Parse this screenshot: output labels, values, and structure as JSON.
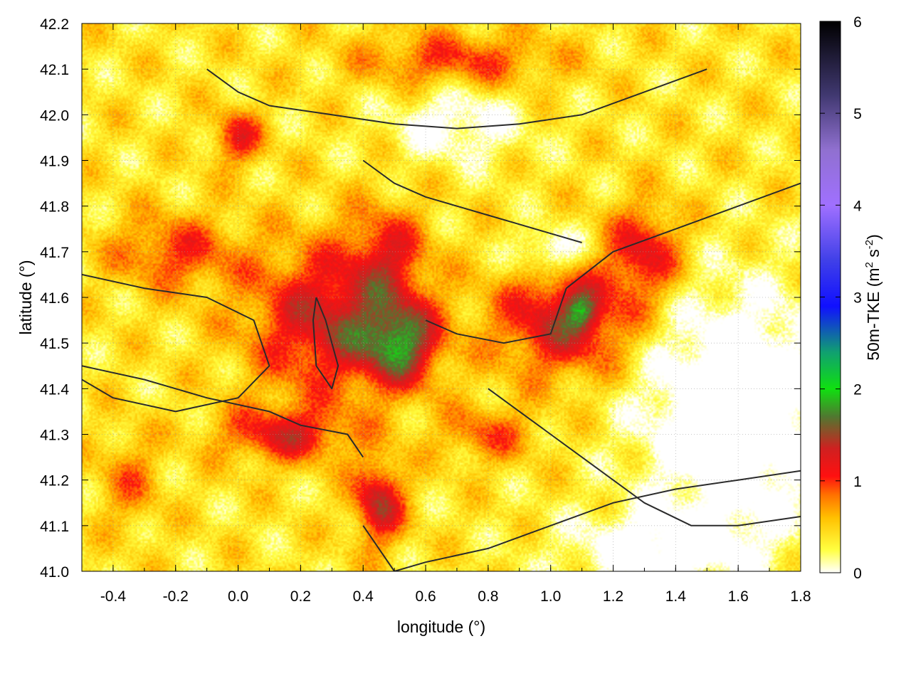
{
  "chart_data": {
    "type": "heatmap",
    "xlabel": "longitude (°)",
    "ylabel": "latitude (°)",
    "xlim": [
      -0.5,
      1.8
    ],
    "ylim": [
      41.0,
      42.2
    ],
    "x_ticks": [
      -0.4,
      -0.2,
      0.0,
      0.2,
      0.4,
      0.6,
      0.8,
      1.0,
      1.2,
      1.4,
      1.6,
      1.8
    ],
    "x_tick_labels": [
      "-0.4",
      "-0.2",
      "0.0",
      "0.2",
      "0.4",
      "0.6",
      "0.8",
      "1.0",
      "1.2",
      "1.4",
      "1.6",
      "1.8"
    ],
    "y_ticks": [
      41.0,
      41.1,
      41.2,
      41.3,
      41.4,
      41.5,
      41.6,
      41.7,
      41.8,
      41.9,
      42.0,
      42.1,
      42.2
    ],
    "y_tick_labels": [
      "41.0",
      "41.1",
      "41.2",
      "41.3",
      "41.4",
      "41.5",
      "41.6",
      "41.7",
      "41.8",
      "41.9",
      "42.0",
      "42.1",
      "42.2"
    ],
    "grid": true,
    "colorbar": {
      "label_main": "50m-TKE (m",
      "label_sup1": "2",
      "label_mid": " s",
      "label_sup2": "-2",
      "label_end": ")",
      "range": [
        0,
        6
      ],
      "ticks": [
        0,
        1,
        2,
        3,
        4,
        5,
        6
      ],
      "tick_labels": [
        "0",
        "1",
        "2",
        "3",
        "4",
        "5",
        "6"
      ],
      "colormap": [
        {
          "value": 0.0,
          "color": "#ffffff"
        },
        {
          "value": 0.25,
          "color": "#ffff40"
        },
        {
          "value": 0.6,
          "color": "#ffc000"
        },
        {
          "value": 0.85,
          "color": "#ff7000"
        },
        {
          "value": 1.05,
          "color": "#ff1010"
        },
        {
          "value": 1.35,
          "color": "#d02020"
        },
        {
          "value": 1.7,
          "color": "#507830"
        },
        {
          "value": 2.0,
          "color": "#10e010"
        },
        {
          "value": 2.4,
          "color": "#10a070"
        },
        {
          "value": 2.9,
          "color": "#1010ff"
        },
        {
          "value": 3.4,
          "color": "#4040e8"
        },
        {
          "value": 4.0,
          "color": "#a070ff"
        },
        {
          "value": 4.6,
          "color": "#9070d0"
        },
        {
          "value": 5.2,
          "color": "#403870"
        },
        {
          "value": 6.0,
          "color": "#000000"
        }
      ]
    },
    "field_blobs": [
      {
        "x": 0.3,
        "y": 41.55,
        "sx": 0.26,
        "sy": 0.16,
        "v": 1.0
      },
      {
        "x": 0.52,
        "y": 41.5,
        "sx": 0.12,
        "sy": 0.09,
        "v": 1.1
      },
      {
        "x": 0.48,
        "y": 41.7,
        "sx": 0.12,
        "sy": 0.1,
        "v": 0.6
      },
      {
        "x": 1.05,
        "y": 41.55,
        "sx": 0.22,
        "sy": 0.12,
        "v": 1.0
      },
      {
        "x": 1.1,
        "y": 41.57,
        "sx": 0.05,
        "sy": 0.04,
        "v": 0.6
      },
      {
        "x": 0.15,
        "y": 41.3,
        "sx": 0.2,
        "sy": 0.06,
        "v": 0.8
      },
      {
        "x": 0.45,
        "y": 41.15,
        "sx": 0.08,
        "sy": 0.09,
        "v": 1.0
      },
      {
        "x": -0.2,
        "y": 41.7,
        "sx": 0.2,
        "sy": 0.08,
        "v": 0.6
      },
      {
        "x": 0.0,
        "y": 41.95,
        "sx": 0.08,
        "sy": 0.06,
        "v": 0.7
      },
      {
        "x": 1.3,
        "y": 41.7,
        "sx": 0.12,
        "sy": 0.1,
        "v": 0.8
      },
      {
        "x": 0.8,
        "y": 41.3,
        "sx": 0.15,
        "sy": 0.06,
        "v": 0.5
      },
      {
        "x": 0.7,
        "y": 42.12,
        "sx": 0.3,
        "sy": 0.06,
        "v": 0.6
      },
      {
        "x": -0.35,
        "y": 41.2,
        "sx": 0.1,
        "sy": 0.1,
        "v": 0.4
      }
    ],
    "field_holes": [
      {
        "x": 1.6,
        "y": 41.35,
        "sx": 0.3,
        "sy": 0.25,
        "v": 0.9
      },
      {
        "x": 1.0,
        "y": 41.7,
        "sx": 0.12,
        "sy": 0.05,
        "v": 0.6
      },
      {
        "x": 0.7,
        "y": 41.98,
        "sx": 0.2,
        "sy": 0.08,
        "v": 0.5
      },
      {
        "x": 1.35,
        "y": 41.05,
        "sx": 0.3,
        "sy": 0.08,
        "v": 0.6
      }
    ],
    "contours": [
      {
        "name": "contour-1",
        "lon": [
          -0.5,
          -0.3,
          -0.1,
          0.1,
          0.2,
          0.35,
          0.4
        ],
        "lat": [
          41.45,
          41.42,
          41.38,
          41.35,
          41.32,
          41.3,
          41.25
        ]
      },
      {
        "name": "contour-2",
        "lon": [
          0.25,
          0.28,
          0.32,
          0.3,
          0.25,
          0.24,
          0.25
        ],
        "lat": [
          41.6,
          41.55,
          41.45,
          41.4,
          41.45,
          41.55,
          41.6
        ]
      },
      {
        "name": "contour-3",
        "lon": [
          0.4,
          0.5,
          0.6,
          0.7,
          0.8,
          0.9,
          1.0,
          1.1
        ],
        "lat": [
          41.9,
          41.85,
          41.82,
          41.8,
          41.78,
          41.76,
          41.74,
          41.72
        ]
      },
      {
        "name": "contour-4",
        "lon": [
          0.6,
          0.7,
          0.85,
          1.0,
          1.05,
          1.2,
          1.4,
          1.6,
          1.8
        ],
        "lat": [
          41.55,
          41.52,
          41.5,
          41.52,
          41.62,
          41.7,
          41.75,
          41.8,
          41.85
        ]
      },
      {
        "name": "contour-5",
        "lon": [
          0.4,
          0.45,
          0.5,
          0.6,
          0.8,
          1.0,
          1.2,
          1.4,
          1.6,
          1.8
        ],
        "lat": [
          41.1,
          41.05,
          41.0,
          41.02,
          41.05,
          41.1,
          41.15,
          41.18,
          41.2,
          41.22
        ]
      },
      {
        "name": "contour-6",
        "lon": [
          -0.5,
          -0.3,
          -0.1,
          0.05,
          0.1,
          0.0,
          -0.2,
          -0.4,
          -0.5
        ],
        "lat": [
          41.65,
          41.62,
          41.6,
          41.55,
          41.45,
          41.38,
          41.35,
          41.38,
          41.42
        ]
      },
      {
        "name": "contour-7",
        "lon": [
          -0.1,
          0.0,
          0.1,
          0.3,
          0.5,
          0.7,
          0.9,
          1.1,
          1.3,
          1.5
        ],
        "lat": [
          42.1,
          42.05,
          42.02,
          42.0,
          41.98,
          41.97,
          41.98,
          42.0,
          42.05,
          42.1
        ]
      },
      {
        "name": "contour-8",
        "lon": [
          0.8,
          0.9,
          1.0,
          1.1,
          1.2,
          1.3,
          1.45,
          1.6,
          1.8
        ],
        "lat": [
          41.4,
          41.35,
          41.3,
          41.25,
          41.2,
          41.15,
          41.1,
          41.1,
          41.12
        ]
      }
    ]
  }
}
